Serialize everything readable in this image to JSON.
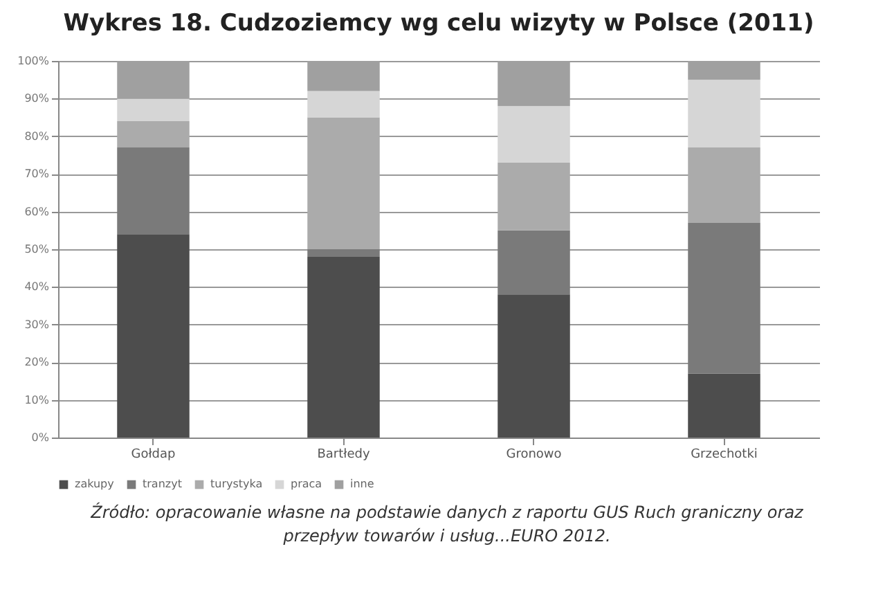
{
  "chart_data": {
    "type": "bar",
    "stacked": true,
    "title": "Wykres 18. Cudzoziemcy wg celu wizyty w Polsce (2011)",
    "categories": [
      "Gołdap",
      "Bartłedy",
      "Gronowo",
      "Grzechotki"
    ],
    "series": [
      {
        "name": "zakupy",
        "color": "#4d4d4d",
        "values": [
          54,
          48,
          38,
          17
        ]
      },
      {
        "name": "tranzyt",
        "color": "#7a7a7a",
        "values": [
          23,
          2,
          17,
          40
        ]
      },
      {
        "name": "turystyka",
        "color": "#ababab",
        "values": [
          7,
          35,
          18,
          20
        ]
      },
      {
        "name": "praca",
        "color": "#d6d6d6",
        "values": [
          6,
          7,
          15,
          18
        ]
      },
      {
        "name": "inne",
        "color": "#a0a0a0",
        "values": [
          10,
          8,
          12,
          5
        ]
      }
    ],
    "ylim": [
      0,
      100
    ],
    "yticks": [
      {
        "value": 0,
        "label": "0%"
      },
      {
        "value": 10,
        "label": "10%"
      },
      {
        "value": 20,
        "label": "20%"
      },
      {
        "value": 30,
        "label": "30%"
      },
      {
        "value": 40,
        "label": "40%"
      },
      {
        "value": 50,
        "label": "50%"
      },
      {
        "value": 60,
        "label": "60%"
      },
      {
        "value": 70,
        "label": "70%"
      },
      {
        "value": 80,
        "label": "80%"
      },
      {
        "value": 90,
        "label": "90%"
      },
      {
        "value": 100,
        "label": "100%"
      }
    ],
    "grid": "y",
    "legend": "bottom",
    "annotations": [
      "Źródło: opracowanie własne na podstawie danych z raportu GUS Ruch graniczny oraz przepływ towarów i usług...EURO 2012."
    ]
  }
}
